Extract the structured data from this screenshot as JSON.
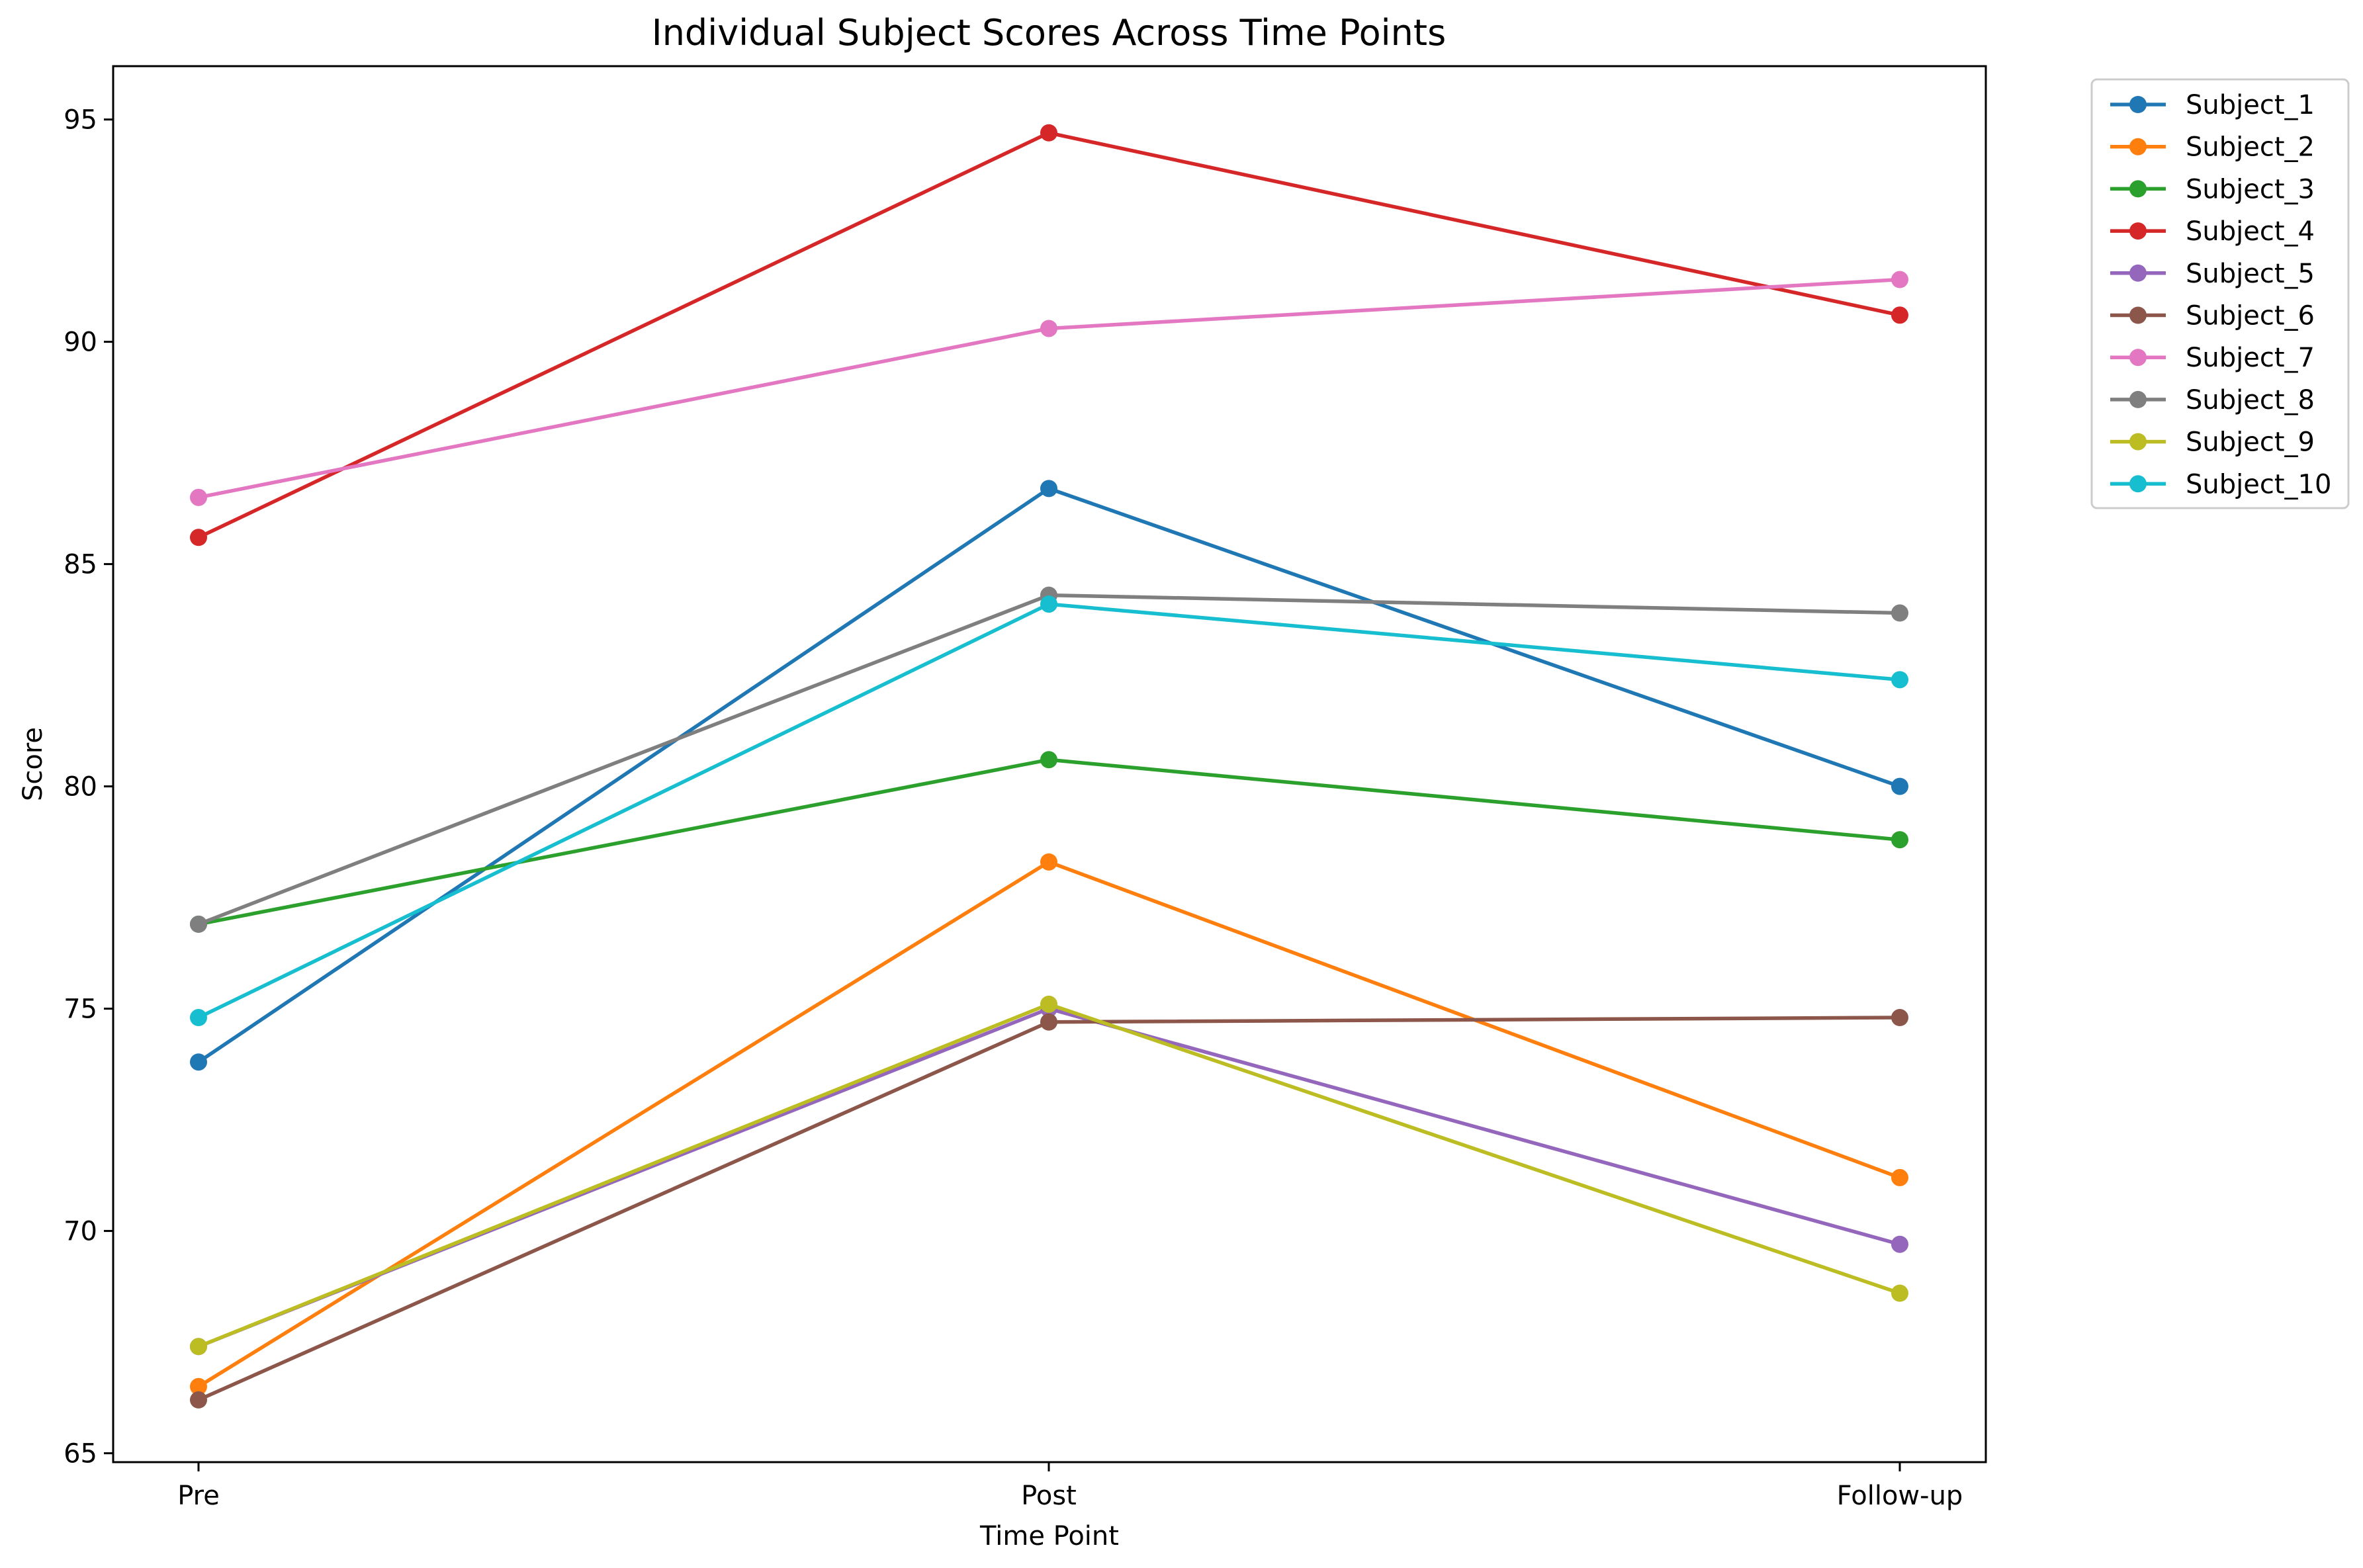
{
  "chart_data": {
    "type": "line",
    "title": "Individual Subject Scores Across Time Points",
    "xlabel": "Time Point",
    "ylabel": "Score",
    "categories": [
      "Pre",
      "Post",
      "Follow-up"
    ],
    "ylim": [
      64.8,
      96.2
    ],
    "yticks": [
      65,
      70,
      75,
      80,
      85,
      90,
      95
    ],
    "grid": false,
    "legend_placement": "outside-top-right",
    "series": [
      {
        "name": "Subject_1",
        "color": "#1f77b4",
        "values": [
          73.8,
          86.7,
          80.0
        ]
      },
      {
        "name": "Subject_2",
        "color": "#ff7f0e",
        "values": [
          66.5,
          78.3,
          71.2
        ]
      },
      {
        "name": "Subject_3",
        "color": "#2ca02c",
        "values": [
          76.9,
          80.6,
          78.8
        ]
      },
      {
        "name": "Subject_4",
        "color": "#d62728",
        "values": [
          85.6,
          94.7,
          90.6
        ]
      },
      {
        "name": "Subject_5",
        "color": "#9467bd",
        "values": [
          67.4,
          75.0,
          69.7
        ]
      },
      {
        "name": "Subject_6",
        "color": "#8c564b",
        "values": [
          66.2,
          74.7,
          74.8
        ]
      },
      {
        "name": "Subject_7",
        "color": "#e377c2",
        "values": [
          86.5,
          90.3,
          91.4
        ]
      },
      {
        "name": "Subject_8",
        "color": "#7f7f7f",
        "values": [
          76.9,
          84.3,
          83.9
        ]
      },
      {
        "name": "Subject_9",
        "color": "#bcbd22",
        "values": [
          67.4,
          75.1,
          68.6
        ]
      },
      {
        "name": "Subject_10",
        "color": "#17becf",
        "values": [
          74.8,
          84.1,
          82.4
        ]
      }
    ]
  }
}
